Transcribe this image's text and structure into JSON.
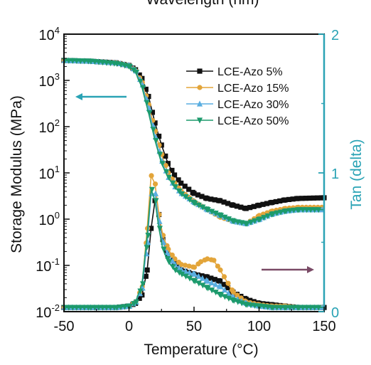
{
  "chart_data": {
    "type": "scatter",
    "title_fragment": "Wavelength (nm)",
    "xlabel": "Temperature (°C)",
    "ylabel": "Storage Modulus (MPa)",
    "y2label": "Tan (delta)",
    "xlim": [
      -50,
      150
    ],
    "xticks": [
      "-50",
      "0",
      "50",
      "100",
      "150"
    ],
    "ylim_log": [
      -2,
      4
    ],
    "yticks": [
      {
        "base": "10",
        "exp": "4"
      },
      {
        "base": "10",
        "exp": "3"
      },
      {
        "base": "10",
        "exp": "2"
      },
      {
        "base": "10",
        "exp": "1"
      },
      {
        "base": "10",
        "exp": "0"
      },
      {
        "base": "10",
        "exp": "-1"
      },
      {
        "base": "10",
        "exp": "-2"
      }
    ],
    "y2lim": [
      0,
      2
    ],
    "y2ticks": [
      "0",
      "1",
      "2"
    ],
    "legend_position": "top-right",
    "colors": {
      "right_axis": "#2aa3b5",
      "left_arrow": "#2aa3b5",
      "right_arrow": "#7a4a66"
    },
    "series": [
      {
        "name": "LCE-Azo 5%",
        "color": "#111111",
        "marker": "square",
        "modulus": [
          [
            -50,
            2700
          ],
          [
            -30,
            2600
          ],
          [
            -10,
            2400
          ],
          [
            0,
            2100
          ],
          [
            5,
            1700
          ],
          [
            10,
            1100
          ],
          [
            15,
            450
          ],
          [
            20,
            120
          ],
          [
            25,
            40
          ],
          [
            30,
            16
          ],
          [
            35,
            9
          ],
          [
            40,
            6
          ],
          [
            50,
            3.6
          ],
          [
            60,
            2.8
          ],
          [
            70,
            2.5
          ],
          [
            80,
            2.0
          ],
          [
            90,
            1.7
          ],
          [
            100,
            2.0
          ],
          [
            110,
            2.3
          ],
          [
            120,
            2.6
          ],
          [
            130,
            2.8
          ],
          [
            150,
            2.9
          ]
        ],
        "tan": [
          [
            -50,
            0.03
          ],
          [
            -30,
            0.03
          ],
          [
            -10,
            0.03
          ],
          [
            0,
            0.04
          ],
          [
            5,
            0.06
          ],
          [
            10,
            0.12
          ],
          [
            14,
            0.3
          ],
          [
            17,
            0.6
          ],
          [
            20,
            0.8
          ],
          [
            23,
            0.7
          ],
          [
            26,
            0.52
          ],
          [
            30,
            0.4
          ],
          [
            35,
            0.35
          ],
          [
            40,
            0.3
          ],
          [
            50,
            0.27
          ],
          [
            60,
            0.25
          ],
          [
            70,
            0.22
          ],
          [
            80,
            0.14
          ],
          [
            90,
            0.09
          ],
          [
            100,
            0.06
          ],
          [
            110,
            0.05
          ],
          [
            120,
            0.04
          ],
          [
            130,
            0.03
          ],
          [
            150,
            0.03
          ]
        ]
      },
      {
        "name": "LCE-Azo 15%",
        "color": "#e3a53a",
        "marker": "circle",
        "modulus": [
          [
            -50,
            2700
          ],
          [
            -30,
            2600
          ],
          [
            -10,
            2400
          ],
          [
            0,
            2100
          ],
          [
            5,
            1600
          ],
          [
            10,
            900
          ],
          [
            15,
            300
          ],
          [
            20,
            80
          ],
          [
            25,
            25
          ],
          [
            30,
            10
          ],
          [
            35,
            6
          ],
          [
            40,
            4
          ],
          [
            50,
            2.4
          ],
          [
            60,
            1.6
          ],
          [
            70,
            1.1
          ],
          [
            80,
            0.9
          ],
          [
            90,
            0.8
          ],
          [
            100,
            1.2
          ],
          [
            110,
            1.5
          ],
          [
            120,
            1.7
          ],
          [
            130,
            1.8
          ],
          [
            150,
            1.8
          ]
        ],
        "tan": [
          [
            -50,
            0.03
          ],
          [
            -30,
            0.03
          ],
          [
            -10,
            0.03
          ],
          [
            0,
            0.04
          ],
          [
            5,
            0.07
          ],
          [
            10,
            0.18
          ],
          [
            14,
            0.6
          ],
          [
            17,
            0.98
          ],
          [
            20,
            0.92
          ],
          [
            23,
            0.7
          ],
          [
            26,
            0.55
          ],
          [
            30,
            0.45
          ],
          [
            35,
            0.38
          ],
          [
            40,
            0.34
          ],
          [
            50,
            0.32
          ],
          [
            55,
            0.36
          ],
          [
            60,
            0.38
          ],
          [
            65,
            0.37
          ],
          [
            70,
            0.3
          ],
          [
            80,
            0.14
          ],
          [
            90,
            0.07
          ],
          [
            100,
            0.05
          ],
          [
            110,
            0.04
          ],
          [
            120,
            0.04
          ],
          [
            130,
            0.03
          ],
          [
            150,
            0.03
          ]
        ]
      },
      {
        "name": "LCE-Azo 30%",
        "color": "#5aaee0",
        "marker": "triangle-up",
        "modulus": [
          [
            -50,
            2700
          ],
          [
            -30,
            2600
          ],
          [
            -10,
            2400
          ],
          [
            0,
            2100
          ],
          [
            5,
            1600
          ],
          [
            10,
            800
          ],
          [
            15,
            250
          ],
          [
            20,
            60
          ],
          [
            25,
            18
          ],
          [
            30,
            8
          ],
          [
            35,
            5
          ],
          [
            40,
            3.6
          ],
          [
            50,
            2.3
          ],
          [
            60,
            1.6
          ],
          [
            70,
            1.2
          ],
          [
            80,
            0.9
          ],
          [
            90,
            0.8
          ],
          [
            100,
            1.0
          ],
          [
            110,
            1.3
          ],
          [
            120,
            1.5
          ],
          [
            130,
            1.6
          ],
          [
            150,
            1.6
          ]
        ],
        "tan": [
          [
            -50,
            0.03
          ],
          [
            -30,
            0.03
          ],
          [
            -10,
            0.03
          ],
          [
            0,
            0.04
          ],
          [
            5,
            0.07
          ],
          [
            10,
            0.17
          ],
          [
            14,
            0.5
          ],
          [
            17,
            0.85
          ],
          [
            20,
            0.85
          ],
          [
            23,
            0.65
          ],
          [
            26,
            0.5
          ],
          [
            30,
            0.4
          ],
          [
            35,
            0.34
          ],
          [
            40,
            0.3
          ],
          [
            50,
            0.27
          ],
          [
            60,
            0.22
          ],
          [
            70,
            0.18
          ],
          [
            80,
            0.1
          ],
          [
            90,
            0.06
          ],
          [
            100,
            0.04
          ],
          [
            110,
            0.03
          ],
          [
            120,
            0.03
          ],
          [
            130,
            0.03
          ],
          [
            150,
            0.03
          ]
        ]
      },
      {
        "name": "LCE-Azo 50%",
        "color": "#1c9a6c",
        "marker": "triangle-down",
        "modulus": [
          [
            -50,
            2700
          ],
          [
            -30,
            2600
          ],
          [
            -10,
            2300
          ],
          [
            0,
            2000
          ],
          [
            5,
            1500
          ],
          [
            10,
            700
          ],
          [
            15,
            200
          ],
          [
            20,
            50
          ],
          [
            25,
            16
          ],
          [
            30,
            8
          ],
          [
            35,
            5
          ],
          [
            40,
            3.5
          ],
          [
            50,
            2.2
          ],
          [
            60,
            1.6
          ],
          [
            70,
            1.2
          ],
          [
            80,
            0.9
          ],
          [
            90,
            0.8
          ],
          [
            100,
            1.0
          ],
          [
            110,
            1.3
          ],
          [
            120,
            1.5
          ],
          [
            130,
            1.6
          ],
          [
            150,
            1.6
          ]
        ],
        "tan": [
          [
            -50,
            0.03
          ],
          [
            -30,
            0.03
          ],
          [
            -10,
            0.03
          ],
          [
            0,
            0.04
          ],
          [
            5,
            0.07
          ],
          [
            10,
            0.2
          ],
          [
            14,
            0.55
          ],
          [
            17,
            0.88
          ],
          [
            20,
            0.8
          ],
          [
            23,
            0.6
          ],
          [
            26,
            0.45
          ],
          [
            30,
            0.36
          ],
          [
            35,
            0.3
          ],
          [
            40,
            0.27
          ],
          [
            50,
            0.22
          ],
          [
            60,
            0.17
          ],
          [
            70,
            0.12
          ],
          [
            80,
            0.08
          ],
          [
            90,
            0.05
          ],
          [
            100,
            0.04
          ],
          [
            110,
            0.03
          ],
          [
            120,
            0.03
          ],
          [
            130,
            0.03
          ],
          [
            150,
            0.03
          ]
        ]
      }
    ]
  }
}
